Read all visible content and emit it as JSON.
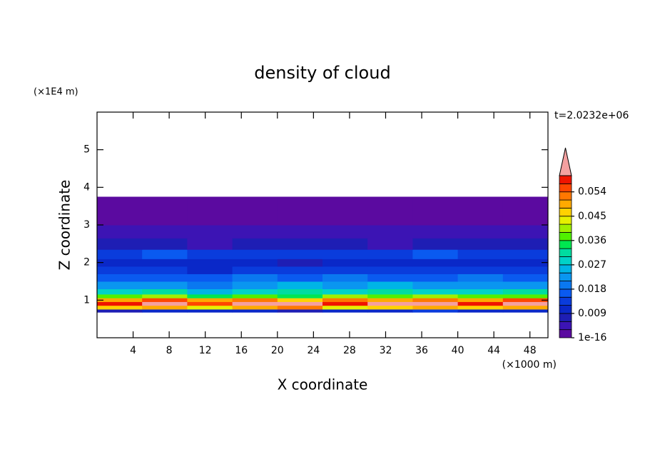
{
  "chart_data": {
    "type": "contour",
    "title": "density of cloud",
    "x_label": "X coordinate",
    "y_label": "Z coordinate",
    "x_unit": "(×1000 m)",
    "y_unit": "(×1E4 m)",
    "time_label": "t=2.0232e+06",
    "xlim": [
      0,
      50
    ],
    "ylim": [
      0,
      6
    ],
    "xticks": [
      4,
      8,
      12,
      16,
      20,
      24,
      28,
      32,
      36,
      40,
      44,
      48
    ],
    "yticks": [
      1,
      2,
      3,
      4,
      5
    ],
    "x_edges": [
      0,
      5,
      10,
      15,
      20,
      25,
      30,
      35,
      40,
      45,
      50
    ],
    "y_edges": [
      0.68,
      0.76,
      0.86,
      0.96,
      1.06,
      1.16,
      1.3,
      1.5,
      1.7,
      1.9,
      2.1,
      2.35,
      2.65,
      3.0,
      3.4,
      3.75
    ],
    "values": [
      [
        0.008,
        0.01,
        0.009,
        0.011,
        0.008,
        0.01,
        0.009,
        0.012,
        0.01,
        0.011
      ],
      [
        0.045,
        0.05,
        0.042,
        0.048,
        0.052,
        0.044,
        0.047,
        0.05,
        0.046,
        0.049
      ],
      [
        0.058,
        0.062,
        0.055,
        0.061,
        0.064,
        0.057,
        0.06,
        0.063,
        0.059,
        0.062
      ],
      [
        0.05,
        0.054,
        0.048,
        0.052,
        0.047,
        0.051,
        0.049,
        0.053,
        0.05,
        0.055
      ],
      [
        0.036,
        0.04,
        0.034,
        0.038,
        0.035,
        0.039,
        0.037,
        0.041,
        0.036,
        0.038
      ],
      [
        0.027,
        0.03,
        0.026,
        0.029,
        0.031,
        0.028,
        0.03,
        0.027,
        0.029,
        0.03
      ],
      [
        0.021,
        0.023,
        0.02,
        0.022,
        0.024,
        0.021,
        0.025,
        0.022,
        0.023,
        0.021
      ],
      [
        0.016,
        0.017,
        0.015,
        0.018,
        0.016,
        0.019,
        0.017,
        0.016,
        0.018,
        0.017
      ],
      [
        0.012,
        0.013,
        0.011,
        0.014,
        0.012,
        0.013,
        0.012,
        0.014,
        0.013,
        0.012
      ],
      [
        0.01,
        0.011,
        0.009,
        0.01,
        0.008,
        0.009,
        0.011,
        0.01,
        0.009,
        0.01
      ],
      [
        0.014,
        0.015,
        0.013,
        0.014,
        0.012,
        0.013,
        0.014,
        0.015,
        0.013,
        0.014
      ],
      [
        0.006,
        0.007,
        0.005,
        0.006,
        0.006,
        0.007,
        0.005,
        0.006,
        0.007,
        0.006
      ],
      [
        0.003,
        0.004,
        0.003,
        0.004,
        0.003,
        0.003,
        0.004,
        0.004,
        0.003,
        0.004
      ],
      [
        0.001,
        0.001,
        0.002,
        0.001,
        0.001,
        0.002,
        0.001,
        0.001,
        0.002,
        0.001
      ],
      [
        0.0005,
        0.0005,
        0.001,
        0.0005,
        0.0005,
        0.0005,
        0.001,
        0.0005,
        0.0005,
        0.0005
      ]
    ],
    "levels": [
      1e-16,
      0.003,
      0.006,
      0.009,
      0.012,
      0.015,
      0.018,
      0.021,
      0.024,
      0.027,
      0.03,
      0.033,
      0.036,
      0.039,
      0.042,
      0.045,
      0.048,
      0.051,
      0.054,
      0.057,
      0.06
    ],
    "level_colors": [
      "#5b0aa0",
      "#3c14b4",
      "#1e1eb4",
      "#0a28c8",
      "#0a3cdc",
      "#0a5af0",
      "#0a78f0",
      "#0a96f0",
      "#00b4e6",
      "#00d2c8",
      "#00dca0",
      "#00e650",
      "#50f000",
      "#a0f000",
      "#e6f000",
      "#ffd200",
      "#ffaa00",
      "#ff7800",
      "#ff4600",
      "#f01400"
    ],
    "overflow_color": "#f4a0a0",
    "colorbar_ticks": [
      {
        "value": 1e-16,
        "label": "1e-16"
      },
      0.009,
      0.018,
      0.027,
      0.036,
      0.045,
      0.054
    ]
  }
}
